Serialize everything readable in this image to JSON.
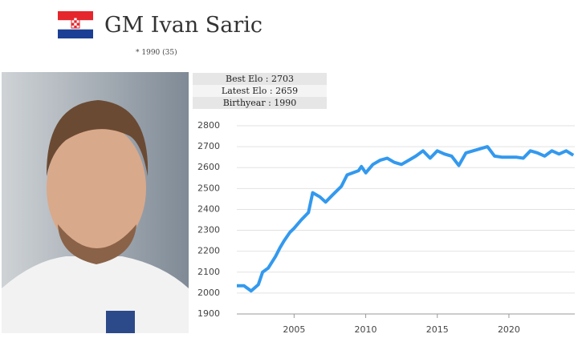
{
  "header": {
    "title": "GM Ivan Saric",
    "subtitle": "* 1990 (35)"
  },
  "stats": [
    "Best Elo : 2703",
    "Latest Elo : 2659",
    "Birthyear : 1990"
  ],
  "chart_data": {
    "type": "line",
    "color": "#3399ee",
    "grid": true,
    "x": [
      2001,
      2001.5,
      2002,
      2002.5,
      2002.8,
      2003.2,
      2003.7,
      2004,
      2004.3,
      2004.7,
      2005,
      2005.5,
      2006,
      2006.3,
      2006.8,
      2007.2,
      2007.7,
      2008.3,
      2008.7,
      2009.5,
      2009.7,
      2010,
      2010.5,
      2011,
      2011.5,
      2012,
      2012.5,
      2013,
      2013.5,
      2014,
      2014.5,
      2015,
      2015.5,
      2016,
      2016.5,
      2017,
      2017.5,
      2018,
      2018.5,
      2019,
      2019.5,
      2020,
      2020.5,
      2021,
      2021.5,
      2022,
      2022.5,
      2023,
      2023.5,
      2024,
      2024.5
    ],
    "values": [
      2035,
      2035,
      2010,
      2040,
      2100,
      2120,
      2175,
      2215,
      2250,
      2290,
      2310,
      2350,
      2385,
      2480,
      2460,
      2435,
      2470,
      2510,
      2565,
      2585,
      2605,
      2575,
      2615,
      2635,
      2645,
      2625,
      2615,
      2635,
      2655,
      2680,
      2645,
      2680,
      2665,
      2655,
      2610,
      2670,
      2680,
      2690,
      2700,
      2655,
      2650,
      2650,
      2650,
      2645,
      2680,
      2670,
      2655,
      2680,
      2665,
      2680,
      2659
    ],
    "xlim": [
      2001,
      2024.6
    ],
    "xticks": [
      2005,
      2010,
      2015,
      2020
    ],
    "ylim": [
      1900,
      2800
    ],
    "yticks": [
      1900,
      2000,
      2100,
      2200,
      2300,
      2400,
      2500,
      2600,
      2700,
      2800
    ]
  }
}
